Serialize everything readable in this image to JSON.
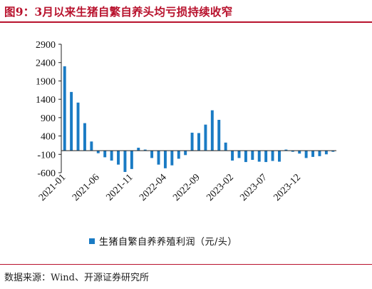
{
  "title": "图9：3月以来生猪自繁自养头均亏损持续收窄",
  "source": "数据来源：Wind、开源证券研究所",
  "colors": {
    "accent": "#b8122d",
    "bar": "#1a7bc4"
  },
  "chart_data": {
    "type": "bar",
    "title": "图9：3月以来生猪自繁自养头均亏损持续收窄",
    "xlabel": "",
    "ylabel": "",
    "ylim": [
      -600,
      2900
    ],
    "y_ticks": [
      2900,
      2400,
      1900,
      1400,
      900,
      400,
      -100,
      -600
    ],
    "x_tick_labels": [
      "2021-01",
      "2021-06",
      "2021-11",
      "2022-04",
      "2022-09",
      "2023-02",
      "2023-07",
      "2023-12"
    ],
    "grid": false,
    "legend": "bottom-center",
    "categories": [
      "2021-01",
      "2021-02",
      "2021-03",
      "2021-04",
      "2021-05",
      "2021-06",
      "2021-07",
      "2021-08",
      "2021-09",
      "2021-10",
      "2021-11",
      "2021-12",
      "2022-01",
      "2022-02",
      "2022-03",
      "2022-04",
      "2022-05",
      "2022-06",
      "2022-07",
      "2022-08",
      "2022-09",
      "2022-10",
      "2022-11",
      "2022-12",
      "2023-01",
      "2023-02",
      "2023-03",
      "2023-04",
      "2023-05",
      "2023-06",
      "2023-07",
      "2023-08",
      "2023-09",
      "2023-10",
      "2023-11",
      "2023-12",
      "2024-01",
      "2024-02",
      "2024-03",
      "2024-04",
      "2024-05"
    ],
    "series": [
      {
        "name": "生猪自繁自养养殖利润（元/头）",
        "values": [
          2300,
          1600,
          1310,
          750,
          250,
          -70,
          -180,
          -270,
          -380,
          -580,
          -500,
          80,
          30,
          -200,
          -380,
          -480,
          -400,
          -220,
          -120,
          490,
          480,
          710,
          1100,
          840,
          220,
          -270,
          -200,
          -310,
          -250,
          -300,
          -310,
          -280,
          -300,
          30,
          -30,
          -80,
          -200,
          -170,
          -150,
          -100,
          -30
        ]
      }
    ]
  }
}
